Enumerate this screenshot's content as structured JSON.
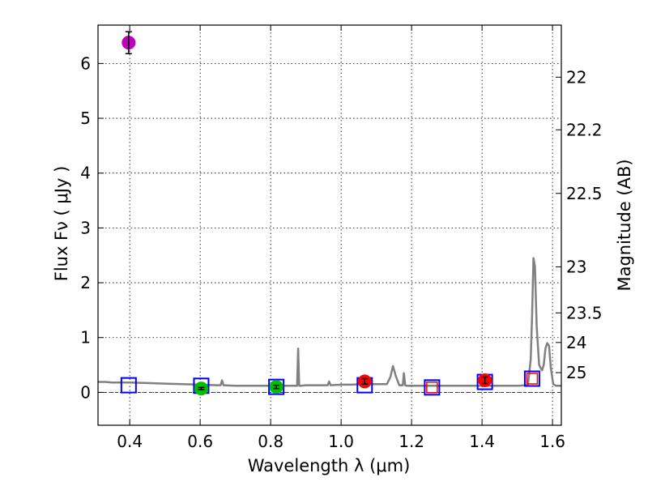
{
  "chart_data": {
    "type": "scatter",
    "xlabel": "Wavelength  λ (μm)",
    "ylabel": "Flux  Fν  ( μJy )",
    "ylabel_right": "Magnitude (AB)",
    "xlim": [
      0.31,
      1.625
    ],
    "ylim": [
      -0.6,
      6.7
    ],
    "x_ticks": [
      0.4,
      0.6,
      0.8,
      1.0,
      1.2,
      1.4,
      1.6
    ],
    "x_tick_labels": [
      "0.4",
      "0.6",
      "0.8",
      "1.0",
      "1.2",
      "1.4",
      "1.6"
    ],
    "y_ticks": [
      0,
      1,
      2,
      3,
      4,
      5,
      6
    ],
    "y_tick_labels": [
      "0",
      "1",
      "2",
      "3",
      "4",
      "5",
      "6"
    ],
    "right_ticks": [
      {
        "label": "22",
        "flux": 5.75
      },
      {
        "label": "22.2",
        "flux": 4.79
      },
      {
        "label": "22.5",
        "flux": 3.63
      },
      {
        "label": "23",
        "flux": 2.29
      },
      {
        "label": "23.5",
        "flux": 1.45
      },
      {
        "label": "24",
        "flux": 0.91
      },
      {
        "label": "25",
        "flux": 0.36
      }
    ],
    "model_spectrum": {
      "color": "#808080",
      "x": [
        0.31,
        0.33,
        0.35,
        0.37,
        0.4,
        0.45,
        0.5,
        0.55,
        0.6,
        0.65,
        0.658,
        0.662,
        0.666,
        0.7,
        0.75,
        0.8,
        0.85,
        0.875,
        0.878,
        0.881,
        0.885,
        0.9,
        0.95,
        0.962,
        0.966,
        0.97,
        1.0,
        1.03,
        1.06,
        1.08,
        1.1,
        1.13,
        1.14,
        1.147,
        1.155,
        1.165,
        1.175,
        1.178,
        1.182,
        1.186,
        1.2,
        1.25,
        1.3,
        1.35,
        1.4,
        1.45,
        1.5,
        1.53,
        1.538,
        1.542,
        1.546,
        1.55,
        1.555,
        1.562,
        1.57,
        1.575,
        1.58,
        1.585,
        1.59,
        1.595,
        1.602,
        1.61,
        1.625
      ],
      "y": [
        0.19,
        0.19,
        0.18,
        0.18,
        0.18,
        0.17,
        0.16,
        0.15,
        0.14,
        0.13,
        0.13,
        0.22,
        0.13,
        0.12,
        0.12,
        0.12,
        0.12,
        0.12,
        0.8,
        0.12,
        0.12,
        0.13,
        0.13,
        0.13,
        0.2,
        0.13,
        0.14,
        0.14,
        0.15,
        0.15,
        0.15,
        0.15,
        0.28,
        0.48,
        0.3,
        0.13,
        0.13,
        0.35,
        0.13,
        0.12,
        0.12,
        0.12,
        0.12,
        0.12,
        0.12,
        0.12,
        0.12,
        0.13,
        0.6,
        1.4,
        2.45,
        2.3,
        1.2,
        0.5,
        0.4,
        0.5,
        0.8,
        0.9,
        0.85,
        0.45,
        0.15,
        0.12,
        0.12
      ]
    },
    "observed": [
      {
        "x": 0.397,
        "y": 6.38,
        "yerr": 0.2,
        "color": "#bf00bf"
      },
      {
        "x": 0.603,
        "y": 0.07,
        "yerr": 0.02,
        "color": "#00bf00"
      },
      {
        "x": 0.816,
        "y": 0.1,
        "yerr": 0.03,
        "color": "#00bf00"
      },
      {
        "x": 1.067,
        "y": 0.2,
        "yerr": 0.05,
        "color": "#ff0000"
      },
      {
        "x": 1.408,
        "y": 0.22,
        "yerr": 0.06,
        "color": "#ff0000"
      }
    ],
    "model_photometry": [
      {
        "x": 0.397,
        "y": 0.13,
        "color": "#0000ff",
        "size": "large"
      },
      {
        "x": 0.603,
        "y": 0.12,
        "color": "#0000ff",
        "size": "large"
      },
      {
        "x": 0.816,
        "y": 0.1,
        "color": "#0000ff",
        "size": "large"
      },
      {
        "x": 1.067,
        "y": 0.13,
        "color": "#0000ff",
        "size": "large"
      },
      {
        "x": 1.258,
        "y": 0.09,
        "color": "#0000ff",
        "size": "large"
      },
      {
        "x": 1.408,
        "y": 0.19,
        "color": "#0000ff",
        "size": "large"
      },
      {
        "x": 1.542,
        "y": 0.25,
        "color": "#0000ff",
        "size": "large"
      },
      {
        "x": 1.258,
        "y": 0.09,
        "color": "#ff0000",
        "size": "small"
      },
      {
        "x": 1.542,
        "y": 0.25,
        "color": "#ff0000",
        "size": "small"
      }
    ]
  }
}
